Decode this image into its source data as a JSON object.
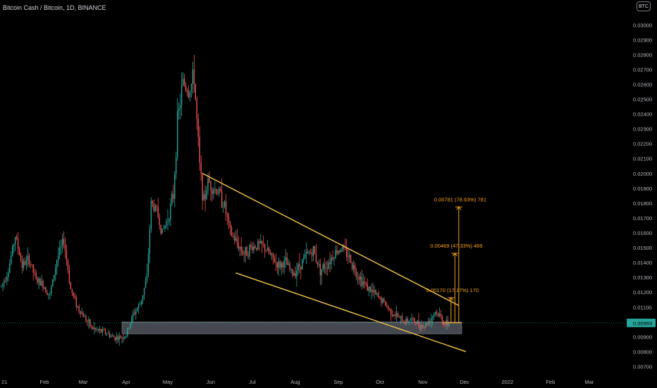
{
  "header": {
    "title": "Bitcoin Cash / Bitcoin, 1D, BINANCE",
    "currency_badge": "BTC"
  },
  "colors": {
    "up": "#26a69a",
    "down": "#ef5350",
    "trendline": "#f7c948",
    "measure": "#f7a21b",
    "zone": "#5d606b",
    "price_tag": "#26a69a"
  },
  "current_price": "0.00993",
  "measurements": [
    {
      "text": "0.00170 (17.17%) 170",
      "value": 0.0017
    },
    {
      "text": "0.00469 (47.33%) 469",
      "value": 0.00469
    },
    {
      "text": "0.00781 (78.93%) 781",
      "value": 0.00781
    }
  ],
  "chart_data": {
    "type": "candlestick",
    "title": "Bitcoin Cash / Bitcoin, 1D, BINANCE",
    "y_axis": {
      "ticks": [
        "0.00700",
        "0.00800",
        "0.00900",
        "0.01000",
        "0.01100",
        "0.01200",
        "0.01300",
        "0.01400",
        "0.01500",
        "0.01600",
        "0.01700",
        "0.01800",
        "0.01900",
        "0.02000",
        "0.02100",
        "0.02200",
        "0.02300",
        "0.02400",
        "0.02500",
        "0.02600",
        "0.02700",
        "0.02800",
        "0.02900",
        "0.03000"
      ],
      "range": [
        0.0065,
        0.0312
      ],
      "side": "right"
    },
    "x_axis": {
      "ticks": [
        "21",
        "Feb",
        "Mar",
        "Apr",
        "May",
        "Jun",
        "Jul",
        "Aug",
        "Sep",
        "Oct",
        "Nov",
        "Dec",
        "2022",
        "Feb",
        "Mar"
      ],
      "tick_days": [
        0,
        31,
        59,
        90,
        120,
        151,
        181,
        212,
        243,
        273,
        304,
        334,
        365,
        396,
        424
      ],
      "range_days": [
        0,
        450
      ]
    },
    "price_path": [
      [
        0,
        0.0124
      ],
      [
        5,
        0.0135
      ],
      [
        10,
        0.0158
      ],
      [
        15,
        0.0138
      ],
      [
        20,
        0.0142
      ],
      [
        25,
        0.0128
      ],
      [
        30,
        0.0125
      ],
      [
        35,
        0.0118
      ],
      [
        40,
        0.0142
      ],
      [
        45,
        0.0155
      ],
      [
        50,
        0.0122
      ],
      [
        55,
        0.011
      ],
      [
        60,
        0.0103
      ],
      [
        65,
        0.0096
      ],
      [
        70,
        0.0094
      ],
      [
        75,
        0.0093
      ],
      [
        80,
        0.009
      ],
      [
        85,
        0.0089
      ],
      [
        90,
        0.0091
      ],
      [
        95,
        0.0105
      ],
      [
        100,
        0.0112
      ],
      [
        105,
        0.013
      ],
      [
        108,
        0.018
      ],
      [
        112,
        0.0175
      ],
      [
        116,
        0.016
      ],
      [
        120,
        0.017
      ],
      [
        124,
        0.0185
      ],
      [
        127,
        0.0235
      ],
      [
        131,
        0.0262
      ],
      [
        135,
        0.0255
      ],
      [
        139,
        0.0265
      ],
      [
        143,
        0.0205
      ],
      [
        146,
        0.018
      ],
      [
        149,
        0.0195
      ],
      [
        153,
        0.019
      ],
      [
        157,
        0.0187
      ],
      [
        161,
        0.0178
      ],
      [
        165,
        0.016
      ],
      [
        170,
        0.0153
      ],
      [
        175,
        0.0146
      ],
      [
        180,
        0.015
      ],
      [
        185,
        0.0152
      ],
      [
        190,
        0.015
      ],
      [
        195,
        0.0143
      ],
      [
        200,
        0.0138
      ],
      [
        205,
        0.014
      ],
      [
        210,
        0.0132
      ],
      [
        215,
        0.0138
      ],
      [
        220,
        0.0145
      ],
      [
        225,
        0.0148
      ],
      [
        230,
        0.0135
      ],
      [
        235,
        0.0139
      ],
      [
        240,
        0.0146
      ],
      [
        245,
        0.015
      ],
      [
        250,
        0.0145
      ],
      [
        255,
        0.0135
      ],
      [
        260,
        0.0128
      ],
      [
        265,
        0.0122
      ],
      [
        270,
        0.0118
      ],
      [
        275,
        0.0114
      ],
      [
        280,
        0.0108
      ],
      [
        285,
        0.0104
      ],
      [
        290,
        0.01
      ],
      [
        295,
        0.0102
      ],
      [
        300,
        0.0099
      ],
      [
        305,
        0.0097
      ],
      [
        310,
        0.0103
      ],
      [
        313,
        0.0107
      ],
      [
        317,
        0.0103
      ],
      [
        320,
        0.0098
      ],
      [
        323,
        0.0099
      ]
    ],
    "trendlines": [
      {
        "name": "upper",
        "from": [
          145,
          0.02
        ],
        "to": [
          330,
          0.0111
        ]
      },
      {
        "name": "lower",
        "from": [
          169,
          0.0133
        ],
        "to": [
          335,
          0.008
        ]
      }
    ],
    "support_zone": {
      "from_day": 87,
      "to_day": 332,
      "low": 0.0092,
      "high": 0.01
    },
    "current_price_line": 0.00993,
    "measure_base": {
      "day_start": 318,
      "day_end": 332,
      "price": 0.00993
    },
    "grid": false,
    "legend": "none"
  }
}
